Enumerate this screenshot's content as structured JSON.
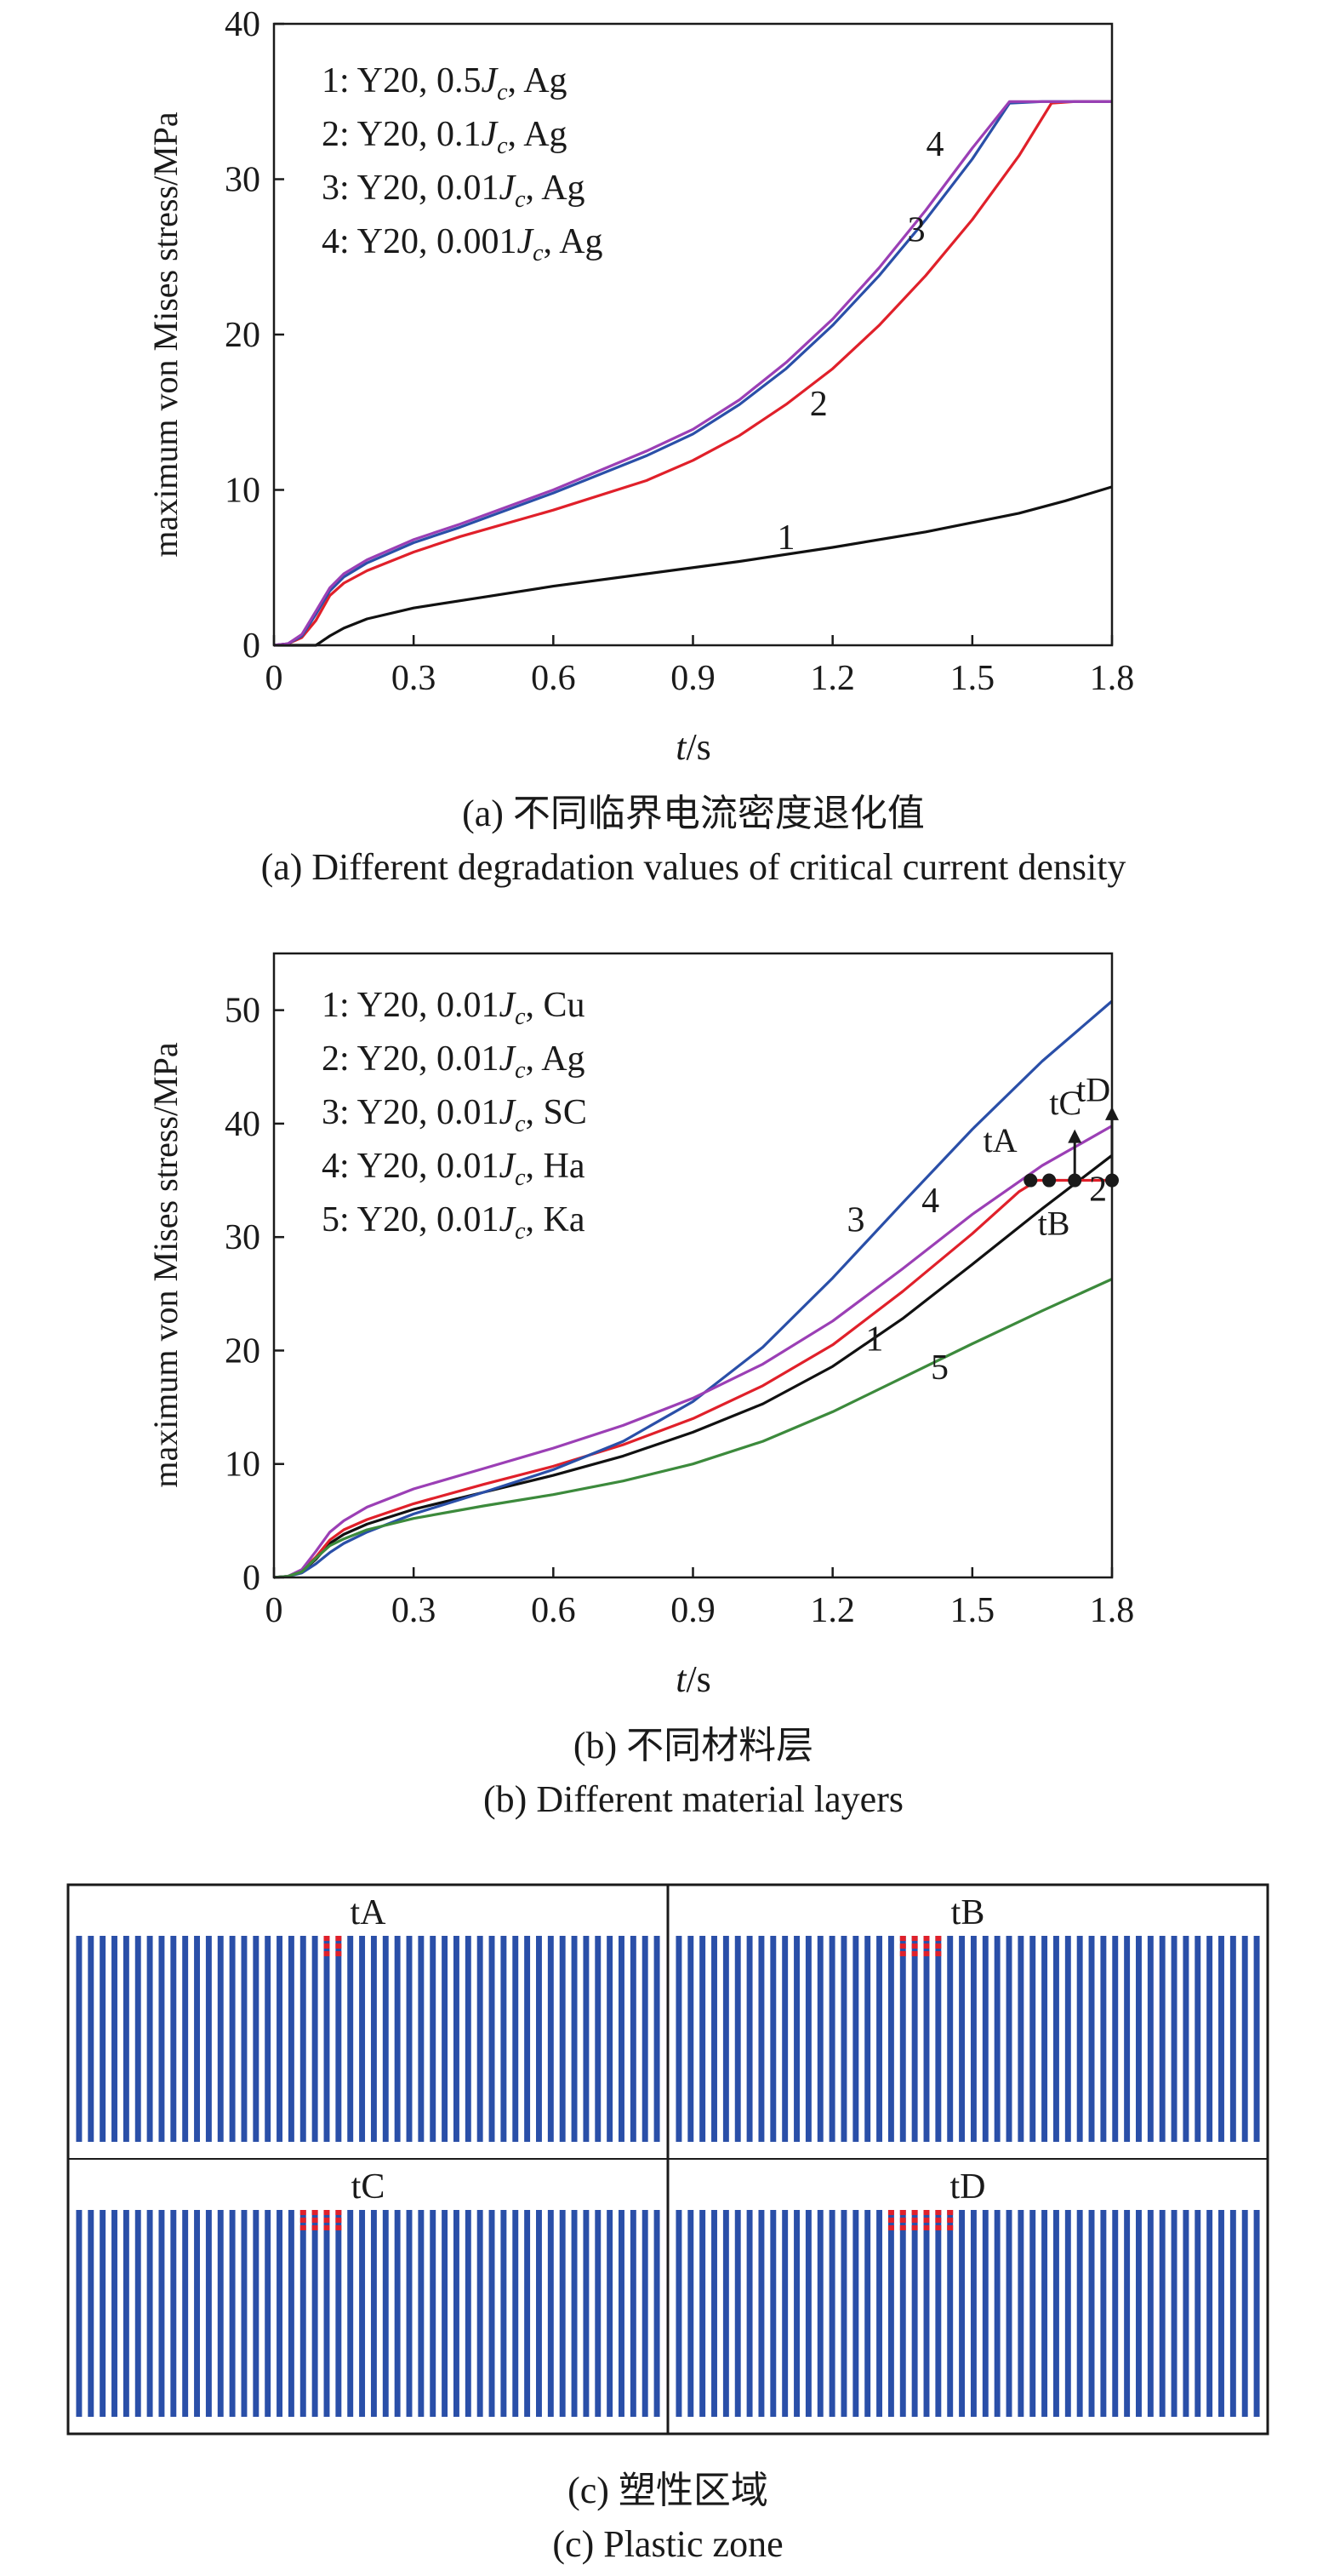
{
  "chart_data": [
    {
      "panel": "a",
      "type": "line",
      "xlabel": "t/s",
      "ylabel": "maximum von Mises stress/MPa",
      "xlim": [
        0,
        1.8
      ],
      "ylim": [
        0,
        40
      ],
      "xticks": [
        "0",
        "0.3",
        "0.6",
        "0.9",
        "1.2",
        "1.5",
        "1.8"
      ],
      "yticks": [
        "0",
        "10",
        "20",
        "30",
        "40"
      ],
      "caption_cn": "(a) 不同临界电流密度退化值",
      "caption_en": "(a) Different degradation values of critical current density",
      "legend_position": "top-left",
      "legend": [
        {
          "prefix": "1: Y20, 0.5",
          "suffix": ", Ag"
        },
        {
          "prefix": "2: Y20, 0.1",
          "suffix": ", Ag"
        },
        {
          "prefix": "3: Y20, 0.01",
          "suffix": ", Ag"
        },
        {
          "prefix": "4: Y20, 0.001",
          "suffix": ", Ag"
        }
      ],
      "series": [
        {
          "label": "1",
          "color": "#111111",
          "x": [
            0,
            0.09,
            0.1,
            0.12,
            0.15,
            0.2,
            0.3,
            0.45,
            0.6,
            0.8,
            1.0,
            1.2,
            1.4,
            1.6,
            1.7,
            1.8
          ],
          "y": [
            0,
            0,
            0.2,
            0.6,
            1.1,
            1.7,
            2.4,
            3.1,
            3.8,
            4.6,
            5.4,
            6.3,
            7.3,
            8.5,
            9.3,
            10.2
          ]
        },
        {
          "label": "2",
          "color": "#e0202a",
          "x": [
            0,
            0.03,
            0.06,
            0.09,
            0.12,
            0.15,
            0.2,
            0.3,
            0.4,
            0.6,
            0.8,
            0.9,
            1.0,
            1.1,
            1.2,
            1.3,
            1.4,
            1.5,
            1.6,
            1.67,
            1.72,
            1.8
          ],
          "y": [
            0,
            0.1,
            0.5,
            1.6,
            3.2,
            4.0,
            4.8,
            6.0,
            7.0,
            8.7,
            10.6,
            11.9,
            13.5,
            15.5,
            17.8,
            20.6,
            23.8,
            27.4,
            31.5,
            34.9,
            35.0,
            35.0
          ]
        },
        {
          "label": "3",
          "color": "#2a4fa8",
          "x": [
            0,
            0.03,
            0.06,
            0.09,
            0.12,
            0.15,
            0.2,
            0.3,
            0.4,
            0.6,
            0.8,
            0.9,
            1.0,
            1.1,
            1.2,
            1.3,
            1.4,
            1.5,
            1.58,
            1.65,
            1.8
          ],
          "y": [
            0,
            0.1,
            0.6,
            2.0,
            3.5,
            4.4,
            5.3,
            6.6,
            7.6,
            9.8,
            12.2,
            13.6,
            15.5,
            17.8,
            20.6,
            23.8,
            27.4,
            31.3,
            34.9,
            35.0,
            35.0
          ]
        },
        {
          "label": "4",
          "color": "#9b3fb5",
          "x": [
            0,
            0.03,
            0.06,
            0.09,
            0.12,
            0.15,
            0.2,
            0.3,
            0.4,
            0.6,
            0.8,
            0.9,
            1.0,
            1.1,
            1.2,
            1.3,
            1.4,
            1.5,
            1.58,
            1.65,
            1.8
          ],
          "y": [
            0,
            0.1,
            0.7,
            2.2,
            3.7,
            4.6,
            5.5,
            6.8,
            7.8,
            10.0,
            12.5,
            13.9,
            15.8,
            18.2,
            21.0,
            24.3,
            28.0,
            32.0,
            35.0,
            35.0,
            35.0
          ]
        }
      ],
      "curve_labels": [
        {
          "text": "1",
          "x": 1.1,
          "y": 6.2
        },
        {
          "text": "2",
          "x": 1.17,
          "y": 14.8
        },
        {
          "text": "3",
          "x": 1.38,
          "y": 26.0
        },
        {
          "text": "4",
          "x": 1.42,
          "y": 31.5
        }
      ]
    },
    {
      "panel": "b",
      "type": "line",
      "xlabel": "t/s",
      "ylabel": "maximum von Mises stress/MPa",
      "xlim": [
        0,
        1.8
      ],
      "ylim": [
        0,
        55
      ],
      "xticks": [
        "0",
        "0.3",
        "0.6",
        "0.9",
        "1.2",
        "1.5",
        "1.8"
      ],
      "yticks": [
        "0",
        "10",
        "20",
        "30",
        "40",
        "50"
      ],
      "caption_cn": "(b) 不同材料层",
      "caption_en": "(b) Different material layers",
      "legend_position": "top-left",
      "legend": [
        {
          "prefix": "1: Y20, 0.01",
          "suffix": ", Cu"
        },
        {
          "prefix": "2: Y20, 0.01",
          "suffix": ", Ag"
        },
        {
          "prefix": "3: Y20, 0.01",
          "suffix": ", SC"
        },
        {
          "prefix": "4: Y20, 0.01",
          "suffix": ", Ha"
        },
        {
          "prefix": "5: Y20, 0.01",
          "suffix": ", Ka"
        }
      ],
      "series": [
        {
          "label": "1",
          "color": "#111111",
          "x": [
            0,
            0.03,
            0.06,
            0.09,
            0.12,
            0.15,
            0.2,
            0.3,
            0.45,
            0.6,
            0.75,
            0.9,
            1.05,
            1.2,
            1.35,
            1.5,
            1.65,
            1.8
          ],
          "y": [
            0,
            0.1,
            0.5,
            1.6,
            3.0,
            3.8,
            4.7,
            6.0,
            7.5,
            9.0,
            10.7,
            12.8,
            15.3,
            18.6,
            22.8,
            27.6,
            32.5,
            37.2
          ]
        },
        {
          "label": "2",
          "color": "#e0202a",
          "x": [
            0,
            0.03,
            0.06,
            0.09,
            0.12,
            0.15,
            0.2,
            0.3,
            0.45,
            0.6,
            0.75,
            0.9,
            1.05,
            1.2,
            1.35,
            1.5,
            1.6,
            1.64,
            1.7,
            1.8
          ],
          "y": [
            0,
            0.1,
            0.6,
            1.8,
            3.3,
            4.2,
            5.1,
            6.5,
            8.2,
            9.8,
            11.7,
            14.0,
            16.9,
            20.5,
            25.2,
            30.3,
            34.0,
            35.0,
            35.0,
            35.0
          ]
        },
        {
          "label": "3",
          "color": "#2a4fa8",
          "x": [
            0,
            0.03,
            0.06,
            0.09,
            0.12,
            0.15,
            0.2,
            0.3,
            0.45,
            0.6,
            0.75,
            0.9,
            1.05,
            1.2,
            1.35,
            1.5,
            1.65,
            1.8
          ],
          "y": [
            0,
            0.1,
            0.4,
            1.2,
            2.2,
            3.0,
            4.0,
            5.6,
            7.5,
            9.5,
            12.0,
            15.5,
            20.3,
            26.4,
            33.0,
            39.5,
            45.5,
            50.8
          ]
        },
        {
          "label": "4",
          "color": "#9b3fb5",
          "x": [
            0,
            0.03,
            0.06,
            0.09,
            0.12,
            0.15,
            0.2,
            0.3,
            0.45,
            0.6,
            0.75,
            0.9,
            1.05,
            1.2,
            1.35,
            1.5,
            1.65,
            1.8
          ],
          "y": [
            0,
            0.1,
            0.7,
            2.3,
            4.0,
            5.0,
            6.2,
            7.8,
            9.6,
            11.4,
            13.4,
            15.8,
            18.8,
            22.6,
            27.2,
            32.0,
            36.3,
            39.8
          ]
        },
        {
          "label": "5",
          "color": "#3c8a3c",
          "x": [
            0,
            0.03,
            0.06,
            0.09,
            0.12,
            0.15,
            0.2,
            0.3,
            0.45,
            0.6,
            0.75,
            0.9,
            1.05,
            1.2,
            1.35,
            1.5,
            1.65,
            1.8
          ],
          "y": [
            0,
            0.1,
            0.5,
            1.7,
            2.8,
            3.4,
            4.2,
            5.2,
            6.3,
            7.3,
            8.5,
            10.0,
            12.0,
            14.6,
            17.6,
            20.6,
            23.5,
            26.3
          ]
        }
      ],
      "curve_labels": [
        {
          "text": "1",
          "x": 1.29,
          "y": 20.0
        },
        {
          "text": "2",
          "x": 1.77,
          "y": 33.2
        },
        {
          "text": "3",
          "x": 1.25,
          "y": 30.5
        },
        {
          "text": "4",
          "x": 1.41,
          "y": 32.2
        },
        {
          "text": "5",
          "x": 1.43,
          "y": 17.5
        }
      ],
      "markers": [
        {
          "name": "tA",
          "x": 1.625,
          "y": 35.0
        },
        {
          "name": "tB",
          "x": 1.665,
          "y": 35.0
        },
        {
          "name": "tC",
          "x": 1.72,
          "y": 35.0
        },
        {
          "name": "tD",
          "x": 1.8,
          "y": 35.0
        }
      ],
      "marker_labels": [
        {
          "text": "tA",
          "x": 1.56,
          "y": 37.5
        },
        {
          "text": "tB",
          "x": 1.675,
          "y": 30.2
        },
        {
          "text": "tC",
          "x": 1.7,
          "y": 40.8
        },
        {
          "text": "tD",
          "x": 1.76,
          "y": 42.0
        }
      ],
      "marker_arrows": [
        {
          "x": 1.72,
          "y_from": 35.0,
          "y_to": 39.5
        },
        {
          "x": 1.8,
          "y_from": 35.0,
          "y_to": 41.5
        }
      ]
    },
    {
      "panel": "c",
      "type": "other",
      "caption_cn": "(c) 塑性区域",
      "caption_en": "(c) Plastic zone",
      "layer_count": 50,
      "layer_color": "#2a4fa8",
      "plastic_color": "#e0202a",
      "cells": [
        {
          "label": "tA",
          "plastic_layers": [
            21,
            22
          ]
        },
        {
          "label": "tB",
          "plastic_layers": [
            19,
            20,
            21,
            22
          ]
        },
        {
          "label": "tC",
          "plastic_layers": [
            19,
            20,
            21,
            22
          ]
        },
        {
          "label": "tD",
          "plastic_layers": [
            18,
            19,
            20,
            21,
            22,
            23
          ]
        }
      ]
    }
  ]
}
